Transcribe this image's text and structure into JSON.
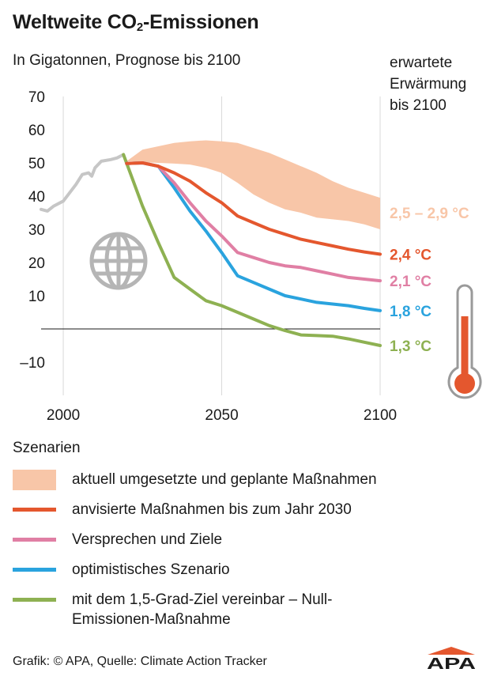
{
  "header": {
    "title_main": "Weltweite CO",
    "title_sub": "2",
    "title_rest": "-Emissionen",
    "subtitle": "In Gigatonnen, Prognose bis 2100",
    "warming_heading_1": "erwartete",
    "warming_heading_2": "Erwärmung",
    "warming_heading_3": "bis 2100"
  },
  "chart_data": {
    "type": "line",
    "title": "Weltweite CO2-Emissionen",
    "subtitle": "In Gigatonnen, Prognose bis 2100",
    "xlim": [
      1993,
      2100
    ],
    "ylim": [
      -20,
      70
    ],
    "x_ticks": [
      2000,
      2050,
      2100
    ],
    "y_ticks": [
      70,
      60,
      50,
      40,
      30,
      20,
      10,
      -10
    ],
    "y_tick_labels": [
      "70",
      "60",
      "50",
      "40",
      "30",
      "20",
      "10",
      "–10"
    ],
    "grid": "vertical",
    "historical": {
      "color": "#c6c6c6",
      "points": [
        [
          1993,
          36
        ],
        [
          1995,
          35.5
        ],
        [
          1997,
          37
        ],
        [
          2000,
          38.5
        ],
        [
          2002,
          41
        ],
        [
          2004,
          43.5
        ],
        [
          2006,
          46.5
        ],
        [
          2008,
          47
        ],
        [
          2009,
          46
        ],
        [
          2010,
          48.5
        ],
        [
          2012,
          50.5
        ],
        [
          2015,
          51
        ],
        [
          2017,
          51.5
        ],
        [
          2019,
          52.5
        ]
      ]
    },
    "band": {
      "name": "aktuell umgesetzte und geplante Maßnahmen",
      "color": "#f8c6a8",
      "upper": [
        [
          2020,
          50.5
        ],
        [
          2025,
          54
        ],
        [
          2030,
          55
        ],
        [
          2035,
          56
        ],
        [
          2040,
          56.5
        ],
        [
          2045,
          56.8
        ],
        [
          2050,
          56.5
        ],
        [
          2055,
          56
        ],
        [
          2060,
          54.5
        ],
        [
          2065,
          53
        ],
        [
          2070,
          51
        ],
        [
          2075,
          49
        ],
        [
          2080,
          47
        ],
        [
          2085,
          44.5
        ],
        [
          2090,
          42.5
        ],
        [
          2095,
          41
        ],
        [
          2100,
          39.5
        ]
      ],
      "lower": [
        [
          2100,
          30
        ],
        [
          2095,
          31.5
        ],
        [
          2090,
          32.5
        ],
        [
          2085,
          33
        ],
        [
          2080,
          33.5
        ],
        [
          2075,
          35
        ],
        [
          2070,
          36
        ],
        [
          2065,
          38
        ],
        [
          2060,
          40.5
        ],
        [
          2055,
          44
        ],
        [
          2050,
          47
        ],
        [
          2045,
          48.5
        ],
        [
          2040,
          49.5
        ],
        [
          2035,
          49.8
        ],
        [
          2030,
          50
        ],
        [
          2025,
          50.2
        ],
        [
          2020,
          50.5
        ]
      ],
      "temperature": "2,5 – 2,9 °C"
    },
    "series": [
      {
        "name": "anvisierte Maßnahmen bis zum Jahr 2030",
        "color": "#e4572e",
        "temperature": "2,4 °C",
        "points": [
          [
            2020,
            49.8
          ],
          [
            2025,
            50
          ],
          [
            2030,
            49
          ],
          [
            2035,
            47
          ],
          [
            2040,
            44.5
          ],
          [
            2045,
            41
          ],
          [
            2050,
            38
          ],
          [
            2055,
            34
          ],
          [
            2060,
            32
          ],
          [
            2065,
            30
          ],
          [
            2070,
            28.5
          ],
          [
            2075,
            27
          ],
          [
            2080,
            26
          ],
          [
            2085,
            25
          ],
          [
            2090,
            24
          ],
          [
            2095,
            23.2
          ],
          [
            2100,
            22.5
          ]
        ]
      },
      {
        "name": "Versprechen und Ziele",
        "color": "#e07fa4",
        "temperature": "2,1 °C",
        "points": [
          [
            2020,
            49.8
          ],
          [
            2025,
            50
          ],
          [
            2030,
            49
          ],
          [
            2035,
            44
          ],
          [
            2040,
            38
          ],
          [
            2045,
            32.5
          ],
          [
            2050,
            28
          ],
          [
            2055,
            23
          ],
          [
            2060,
            21.5
          ],
          [
            2065,
            20
          ],
          [
            2070,
            19
          ],
          [
            2075,
            18.5
          ],
          [
            2080,
            17.5
          ],
          [
            2085,
            16.5
          ],
          [
            2090,
            15.5
          ],
          [
            2095,
            15
          ],
          [
            2100,
            14.5
          ]
        ]
      },
      {
        "name": "optimistisches Szenario",
        "color": "#2aa3de",
        "temperature": "1,8 °C",
        "points": [
          [
            2020,
            49.8
          ],
          [
            2025,
            50
          ],
          [
            2030,
            49
          ],
          [
            2035,
            42.5
          ],
          [
            2040,
            35.5
          ],
          [
            2045,
            29.5
          ],
          [
            2050,
            23
          ],
          [
            2055,
            16
          ],
          [
            2060,
            14
          ],
          [
            2065,
            12
          ],
          [
            2070,
            10
          ],
          [
            2075,
            9
          ],
          [
            2080,
            8
          ],
          [
            2085,
            7.5
          ],
          [
            2090,
            7
          ],
          [
            2095,
            6.2
          ],
          [
            2100,
            5.5
          ]
        ]
      },
      {
        "name": "mit dem 1,5-Grad-Ziel vereinbar – Null-Emissionen-Maßnahme",
        "color": "#8eb152",
        "temperature": "1,3 °C",
        "points": [
          [
            2019,
            52.5
          ],
          [
            2025,
            37
          ],
          [
            2030,
            26
          ],
          [
            2035,
            15.5
          ],
          [
            2040,
            12
          ],
          [
            2045,
            8.5
          ],
          [
            2050,
            7
          ],
          [
            2055,
            5
          ],
          [
            2060,
            3
          ],
          [
            2065,
            1
          ],
          [
            2070,
            -0.5
          ],
          [
            2075,
            -1.8
          ],
          [
            2080,
            -2
          ],
          [
            2085,
            -2.2
          ],
          [
            2090,
            -3
          ],
          [
            2095,
            -4
          ],
          [
            2100,
            -5
          ]
        ]
      }
    ]
  },
  "legend": {
    "title": "Szenarien",
    "items": [
      {
        "label": "aktuell umgesetzte und geplante Maßnahmen",
        "color": "#f8c6a8",
        "kind": "band"
      },
      {
        "label": "anvisierte Maßnahmen bis zum Jahr 2030",
        "color": "#e4572e",
        "kind": "line"
      },
      {
        "label": "Versprechen und Ziele",
        "color": "#e07fa4",
        "kind": "line"
      },
      {
        "label": "optimistisches Szenario",
        "color": "#2aa3de",
        "kind": "line"
      },
      {
        "label": "mit dem 1,5-Grad-Ziel vereinbar – Null-Emissionen-Maßnahme",
        "color": "#8eb152",
        "kind": "line"
      }
    ]
  },
  "icons": {
    "globe": "globe-icon",
    "thermometer": "thermometer-icon"
  },
  "colors": {
    "thermometer_red": "#e4572e",
    "grid": "#d9d9d9",
    "historical": "#c6c6c6"
  },
  "footer": {
    "credit": "Grafik: © APA, Quelle: Climate Action Tracker",
    "logo_text": "APA"
  }
}
